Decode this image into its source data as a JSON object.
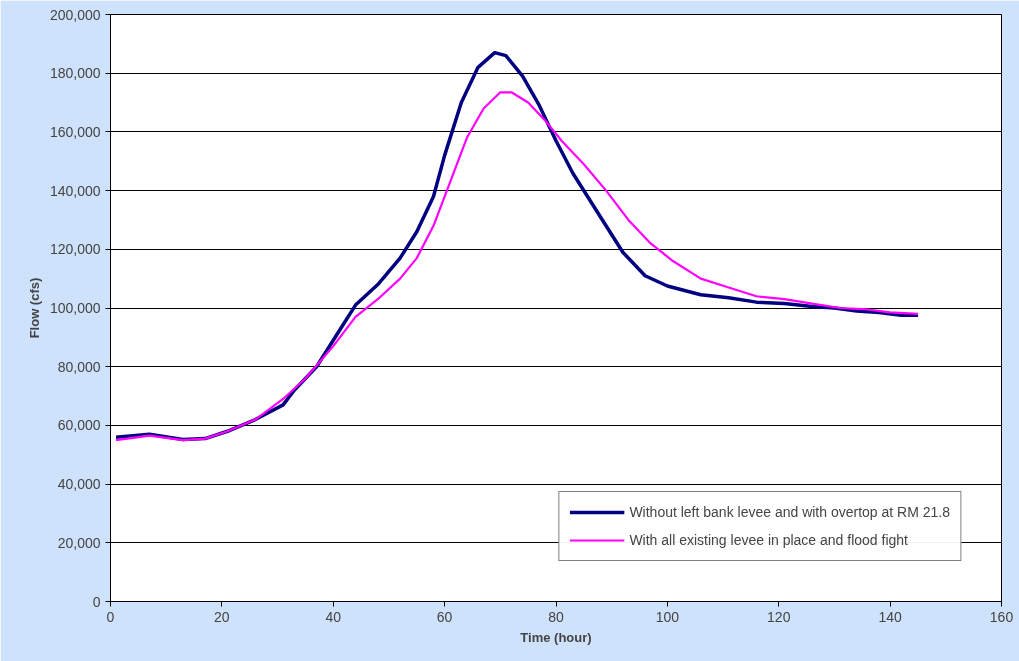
{
  "chart_data": {
    "type": "line",
    "xlabel": "Time (hour)",
    "ylabel": "Flow (cfs)",
    "xlim": [
      0,
      160
    ],
    "xticks": [
      0,
      20,
      40,
      60,
      80,
      100,
      120,
      140,
      160
    ],
    "ylim": [
      0,
      200000
    ],
    "yticks": [
      {
        "value": 0,
        "label": "0"
      },
      {
        "value": 20000,
        "label": "20,000"
      },
      {
        "value": 40000,
        "label": "40,000"
      },
      {
        "value": 60000,
        "label": "60,000"
      },
      {
        "value": 80000,
        "label": "80,000"
      },
      {
        "value": 100000,
        "label": "100,000"
      },
      {
        "value": 120000,
        "label": "120,000"
      },
      {
        "value": 140000,
        "label": "140,000"
      },
      {
        "value": 160000,
        "label": "160,000"
      },
      {
        "value": 180000,
        "label": "180,000"
      },
      {
        "value": 200000,
        "label": "200,000"
      }
    ],
    "grid": "y",
    "legend": "bottom right",
    "marker": "none",
    "line_style": "solid",
    "series": [
      {
        "name": "Without left bank levee and with overtop at RM 21.8",
        "color": "#000080",
        "x": [
          1,
          7,
          13,
          17,
          21,
          26,
          31,
          33,
          37,
          41,
          44,
          48,
          52,
          55,
          58,
          60,
          63,
          66,
          69,
          71,
          74,
          77,
          80,
          83,
          87,
          92,
          96,
          100,
          106,
          111,
          116,
          121,
          126,
          130,
          134,
          138,
          142,
          145
        ],
        "values": [
          56000,
          57000,
          55200,
          55500,
          58000,
          62000,
          67000,
          72000,
          80000,
          92000,
          101000,
          108000,
          117000,
          126000,
          138000,
          152000,
          170000,
          182000,
          187000,
          186000,
          179000,
          169000,
          157000,
          146000,
          134000,
          119000,
          111000,
          107500,
          104500,
          103500,
          102000,
          101500,
          100500,
          100000,
          99000,
          98500,
          97500,
          97500
        ]
      },
      {
        "name": "With all existing levee in place and flood fight",
        "color": "#ff00ff",
        "x": [
          1,
          7,
          13,
          17,
          21,
          26,
          31,
          35,
          40,
          44,
          48,
          52,
          55,
          58,
          61,
          64,
          67,
          70,
          72,
          75,
          78,
          81,
          85,
          89,
          93,
          97,
          101,
          106,
          111,
          116,
          121,
          126,
          131,
          136,
          140,
          145
        ],
        "values": [
          55000,
          56500,
          55000,
          55500,
          58000,
          62000,
          69000,
          76000,
          87000,
          97000,
          103000,
          110000,
          117000,
          128000,
          143000,
          158000,
          168000,
          173500,
          173500,
          170000,
          164000,
          157000,
          149000,
          140000,
          130000,
          122000,
          116000,
          110000,
          107000,
          104000,
          103000,
          101500,
          100000,
          99500,
          98500,
          98000
        ]
      }
    ]
  }
}
